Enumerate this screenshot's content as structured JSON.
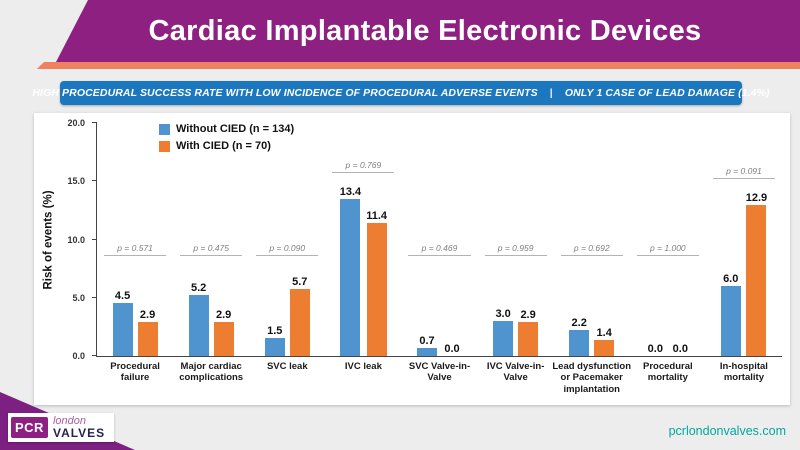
{
  "header": {
    "title": "Cardiac Implantable Electronic Devices"
  },
  "banner": {
    "text_left": "HIGH PROCEDURAL SUCCESS RATE WITH LOW INCIDENCE OF PROCEDURAL ADVERSE EVENTS",
    "separator": "|",
    "text_right": "ONLY 1 CASE OF LEAD DAMAGE (1.4%)"
  },
  "chart_data": {
    "type": "bar",
    "title": "",
    "xlabel": "",
    "ylabel": "Risk of events (%)",
    "ylim": [
      0,
      20
    ],
    "yticks": [
      "0.0",
      "5.0",
      "10.0",
      "15.0",
      "20.0"
    ],
    "grid": false,
    "legend_position": "top-left",
    "categories": [
      "Procedural failure",
      "Major cardiac complications",
      "SVC leak",
      "IVC leak",
      "SVC Valve-in-Valve",
      "IVC Valve-in-Valve",
      "Lead dysfunction or Pacemaker implantation",
      "Procedural mortality",
      "In-hospital mortality"
    ],
    "series": [
      {
        "name": "Without CIED (n = 134)",
        "color": "#4f94ce",
        "values": [
          4.5,
          5.2,
          1.5,
          13.4,
          0.7,
          3.0,
          2.2,
          0.0,
          6.0
        ]
      },
      {
        "name": "With CIED (n = 70)",
        "color": "#ed7d31",
        "values": [
          2.9,
          2.9,
          5.7,
          11.4,
          0.0,
          2.9,
          1.4,
          0.0,
          12.9
        ]
      }
    ],
    "p_values": [
      "p = 0.571",
      "p = 0.475",
      "p = 0.090",
      "p = 0.769",
      "p = 0.469",
      "p = 0.959",
      "p = 0.692",
      "p = 1.000",
      "p = 0.091"
    ]
  },
  "footer": {
    "logo": {
      "pcr": "PCR",
      "london": "london",
      "valves": "VALVES"
    },
    "website": "pcrlondonvalves.com"
  },
  "colors": {
    "header_purple": "#8e2082",
    "accent_orange": "#ef8060",
    "banner_blue": "#1b78be",
    "bar_blue": "#4f94ce",
    "bar_orange": "#ed7d31",
    "website_teal": "#00a79d"
  }
}
